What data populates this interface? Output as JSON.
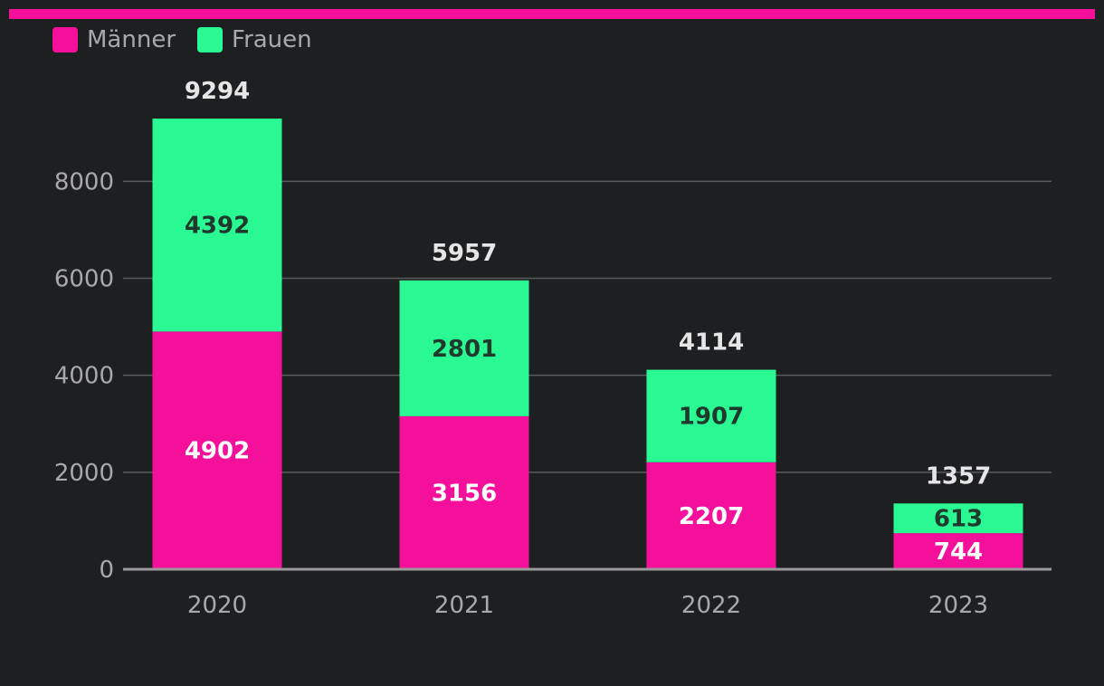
{
  "colors": {
    "background": "#1e1f21",
    "accent_bar": "#f5109c",
    "maenner": "#f5109c",
    "frauen": "#2af893",
    "grid": "#5a5b5e",
    "axis": "#9a9a9c",
    "tick_text": "#a9a9ab",
    "total_text": "#e6e6e6"
  },
  "chart_data": {
    "type": "bar",
    "stacked": true,
    "title": "",
    "xlabel": "",
    "ylabel": "",
    "categories": [
      "2020",
      "2021",
      "2022",
      "2023"
    ],
    "series": [
      {
        "name": "Männer",
        "color": "#f5109c",
        "values": [
          4902,
          3156,
          2207,
          744
        ]
      },
      {
        "name": "Frauen",
        "color": "#2af893",
        "values": [
          4392,
          2801,
          1907,
          613
        ]
      }
    ],
    "totals": [
      9294,
      5957,
      4114,
      1357
    ],
    "ylim": [
      0,
      9294
    ],
    "yticks": [
      0,
      2000,
      4000,
      6000,
      8000
    ],
    "grid": true,
    "legend_placement": "top-left"
  }
}
